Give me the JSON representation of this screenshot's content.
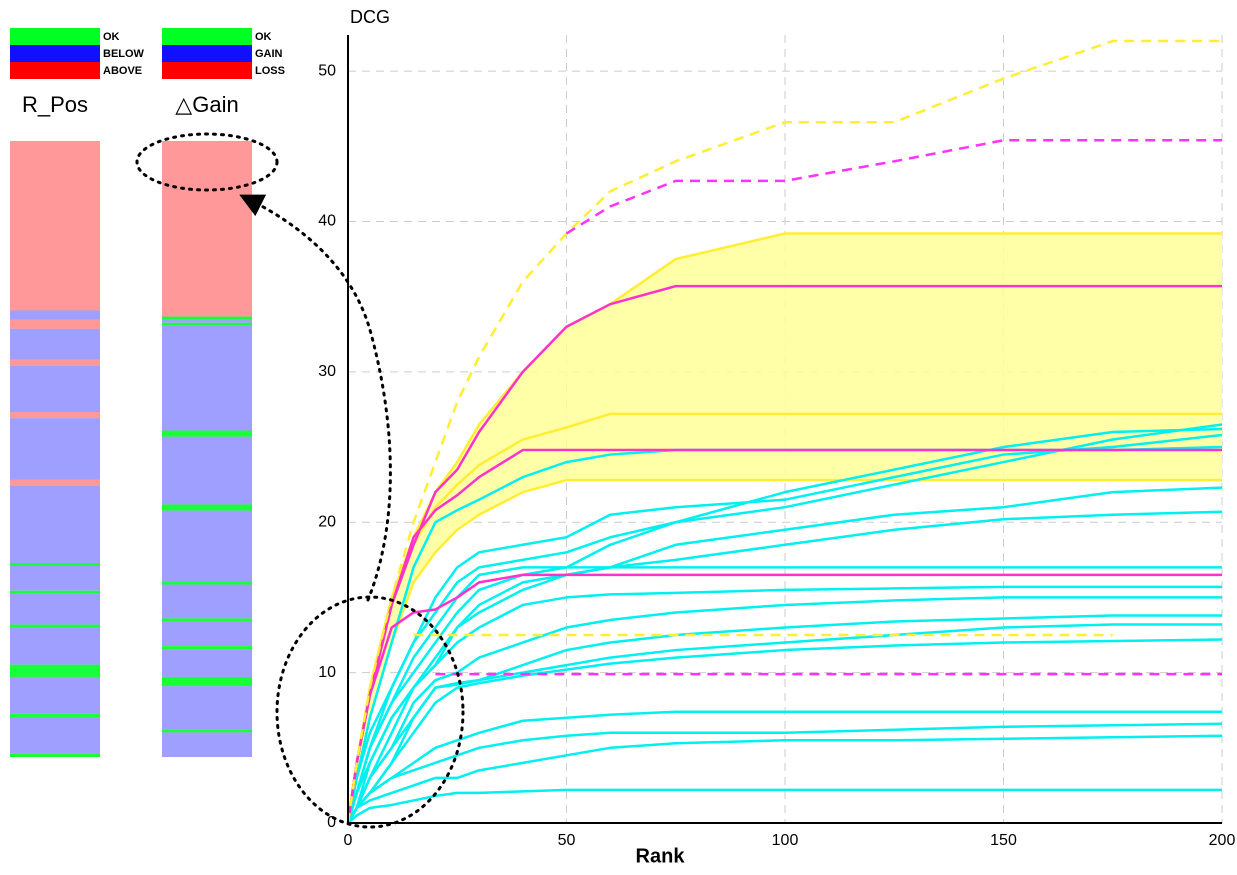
{
  "panels": [
    {
      "title": "R_Pos",
      "legend": [
        {
          "label": "OK",
          "color": "#00ff22"
        },
        {
          "label": "BELOW",
          "color": "#1010ff"
        },
        {
          "label": "ABOVE",
          "color": "#ff0000"
        }
      ],
      "segments": [
        {
          "status": "ABOVE",
          "rows": 55
        },
        {
          "status": "BELOW",
          "rows": 3
        },
        {
          "status": "ABOVE",
          "rows": 3
        },
        {
          "status": "BELOW",
          "rows": 10
        },
        {
          "status": "ABOVE",
          "rows": 2
        },
        {
          "status": "BELOW",
          "rows": 15
        },
        {
          "status": "ABOVE",
          "rows": 2
        },
        {
          "status": "BELOW",
          "rows": 20
        },
        {
          "status": "ABOVE",
          "rows": 2
        },
        {
          "status": "BELOW",
          "rows": 25
        },
        {
          "status": "OK",
          "rows": 1
        },
        {
          "status": "BELOW",
          "rows": 8
        },
        {
          "status": "OK",
          "rows": 1
        },
        {
          "status": "BELOW",
          "rows": 10
        },
        {
          "status": "OK",
          "rows": 1
        },
        {
          "status": "BELOW",
          "rows": 12
        },
        {
          "status": "OK",
          "rows": 4
        },
        {
          "status": "BELOW",
          "rows": 12
        },
        {
          "status": "OK",
          "rows": 1
        },
        {
          "status": "BELOW",
          "rows": 12
        },
        {
          "status": "OK",
          "rows": 1
        }
      ]
    },
    {
      "title": "△Gain",
      "legend": [
        {
          "label": "OK",
          "color": "#00ff22"
        },
        {
          "label": "GAIN",
          "color": "#1010ff"
        },
        {
          "label": "LOSS",
          "color": "#ff0000"
        }
      ],
      "segments": [
        {
          "status": "LOSS",
          "rows": 57
        },
        {
          "status": "OK",
          "rows": 1
        },
        {
          "status": "GAIN",
          "rows": 1
        },
        {
          "status": "OK",
          "rows": 1
        },
        {
          "status": "GAIN",
          "rows": 34
        },
        {
          "status": "OK",
          "rows": 2
        },
        {
          "status": "GAIN",
          "rows": 22
        },
        {
          "status": "OK",
          "rows": 2
        },
        {
          "status": "GAIN",
          "rows": 23
        },
        {
          "status": "OK",
          "rows": 1
        },
        {
          "status": "GAIN",
          "rows": 11
        },
        {
          "status": "OK",
          "rows": 1
        },
        {
          "status": "GAIN",
          "rows": 8
        },
        {
          "status": "OK",
          "rows": 1
        },
        {
          "status": "GAIN",
          "rows": 9
        },
        {
          "status": "OK",
          "rows": 3
        },
        {
          "status": "GAIN",
          "rows": 14
        },
        {
          "status": "OK",
          "rows": 1
        },
        {
          "status": "GAIN",
          "rows": 8
        }
      ]
    }
  ],
  "chart_data": {
    "type": "line",
    "y_label": "DCG",
    "x_label": "Rank",
    "x": [
      0,
      2,
      5,
      10,
      15,
      20,
      25,
      30,
      40,
      50,
      60,
      75,
      100,
      125,
      150,
      175,
      200
    ],
    "xlim": [
      0,
      200
    ],
    "ylim": [
      0,
      52.4
    ],
    "xticks": [
      0,
      50,
      100,
      150,
      200
    ],
    "yticks": [
      0,
      10,
      20,
      30,
      40,
      50
    ],
    "grid": true,
    "series": [
      {
        "color": "#ffee33",
        "fill_to": 2,
        "fill_color": "#ffff99",
        "values": [
          0,
          4,
          9,
          15,
          19,
          22,
          24,
          26.5,
          30,
          33,
          34.5,
          37.5,
          39.2,
          39.2,
          39.2,
          39.2,
          39.2
        ]
      },
      {
        "color": "#ffee33",
        "values": [
          0,
          4,
          8.5,
          14.5,
          18.5,
          21,
          22.5,
          23.8,
          25.5,
          26.3,
          27.2,
          27.2,
          27.2,
          27.2,
          27.2,
          27.2,
          27.2
        ]
      },
      {
        "color": "#ffee33",
        "values": [
          0,
          3,
          7,
          12,
          16,
          18,
          19.5,
          20.5,
          22,
          22.8,
          22.8,
          22.8,
          22.8,
          22.8,
          22.8,
          22.8,
          22.8
        ]
      },
      {
        "color": "#00f0f0",
        "values": [
          0,
          3,
          6,
          9,
          12,
          14,
          16,
          17,
          17.5,
          18,
          19,
          20,
          21,
          22.5,
          24,
          25.5,
          26.5
        ]
      },
      {
        "color": "#00f0f0",
        "values": [
          0,
          2,
          5,
          8,
          10,
          12,
          14,
          15.5,
          16.5,
          17,
          18.5,
          20,
          22,
          23.5,
          25,
          26,
          26.2
        ]
      },
      {
        "color": "#00f0f0",
        "values": [
          0,
          2,
          5,
          9,
          12,
          15,
          17,
          18,
          18.5,
          19,
          20.5,
          21,
          21.5,
          23,
          24.5,
          25,
          25.8
        ]
      },
      {
        "color": "#00f0f0",
        "values": [
          0,
          3,
          7,
          12,
          17,
          20,
          20.8,
          21.5,
          23,
          24,
          24.5,
          24.8,
          24.8,
          24.8,
          24.8,
          24.8,
          25
        ]
      },
      {
        "color": "#00f0f0",
        "values": [
          0,
          1,
          4,
          7,
          9,
          11,
          13,
          14,
          15.5,
          16.5,
          17,
          18.5,
          19.5,
          20.5,
          21,
          22,
          22.3
        ]
      },
      {
        "color": "#00f0f0",
        "values": [
          0,
          2,
          4,
          7,
          9,
          10.5,
          13,
          14.5,
          16,
          16.5,
          17,
          17.5,
          18.5,
          19.5,
          20.2,
          20.5,
          20.7
        ]
      },
      {
        "color": "#00f0f0",
        "values": [
          0,
          2,
          5,
          8,
          11,
          13,
          15,
          16.5,
          17,
          17,
          17,
          17,
          17,
          17,
          17,
          17,
          17
        ]
      },
      {
        "color": "#00f0f0",
        "values": [
          0,
          1,
          3,
          6,
          9,
          10.5,
          12,
          13,
          14.5,
          15,
          15.2,
          15.3,
          15.5,
          15.6,
          15.7,
          15.7,
          15.7
        ]
      },
      {
        "color": "#00f0f0",
        "values": [
          0,
          1,
          3,
          5,
          8,
          9.5,
          10,
          11,
          12,
          13,
          13.5,
          14,
          14.5,
          14.8,
          15,
          15,
          15
        ]
      },
      {
        "color": "#00f0f0",
        "values": [
          0,
          1,
          3,
          5,
          7,
          9,
          9.3,
          9.5,
          10.5,
          11.5,
          12,
          12.5,
          13,
          13.4,
          13.6,
          13.8,
          13.8
        ]
      },
      {
        "color": "#00f0f0",
        "values": [
          0,
          1,
          2,
          4,
          7,
          9,
          9.2,
          9.5,
          10,
          10.5,
          11,
          11.5,
          12,
          12.5,
          13,
          13.2,
          13.2
        ]
      },
      {
        "color": "#00f0f0",
        "values": [
          0,
          1,
          2,
          4,
          6,
          8,
          9,
          9.3,
          9.8,
          10.2,
          10.6,
          11,
          11.5,
          11.8,
          12,
          12.1,
          12.2
        ]
      },
      {
        "color": "#00f0f0",
        "values": [
          0,
          1,
          2,
          3,
          4,
          5,
          5.5,
          6,
          6.8,
          7,
          7.2,
          7.4,
          7.4,
          7.4,
          7.4,
          7.4,
          7.4
        ]
      },
      {
        "color": "#00f0f0",
        "values": [
          0,
          1,
          2,
          3,
          3.5,
          4,
          4.5,
          5,
          5.5,
          5.8,
          6,
          6,
          6,
          6.2,
          6.4,
          6.5,
          6.6
        ]
      },
      {
        "color": "#00f0f0",
        "values": [
          0,
          1,
          1.5,
          2,
          2.5,
          3,
          3,
          3.5,
          4,
          4.5,
          5,
          5.3,
          5.5,
          5.5,
          5.6,
          5.7,
          5.8
        ]
      },
      {
        "color": "#00f0f0",
        "values": [
          0,
          0.5,
          1,
          1.2,
          1.5,
          1.8,
          2,
          2,
          2.1,
          2.2,
          2.2,
          2.2,
          2.2,
          2.2,
          2.2,
          2.2,
          2.2
        ]
      },
      {
        "color": "#ff33cc",
        "values": [
          0,
          4,
          8.5,
          14.5,
          18.5,
          22,
          23.5,
          26,
          30,
          33,
          34.5,
          35.7,
          35.7,
          35.7,
          35.7,
          35.7,
          35.7
        ]
      },
      {
        "color": "#ff33cc",
        "values": [
          0,
          4,
          8.5,
          14.5,
          19,
          20.8,
          21.8,
          23,
          24.8,
          24.8,
          24.8,
          24.8,
          24.8,
          24.8,
          24.8,
          24.8,
          24.8
        ]
      },
      {
        "color": "#ff33cc",
        "values": [
          0,
          4,
          8.5,
          13,
          14,
          14.2,
          15,
          16,
          16.5,
          16.5,
          16.5,
          16.5,
          16.5,
          16.5,
          16.5,
          16.5,
          16.5
        ]
      },
      {
        "color": "#ffee33",
        "dashed": true,
        "values": [
          0,
          4,
          9,
          15,
          20,
          24,
          28,
          31,
          36,
          39.2,
          42,
          44,
          46.6,
          46.6,
          49.5,
          52,
          52
        ]
      },
      {
        "color": "#ff33ff",
        "dashed": true,
        "values": [
          null,
          null,
          null,
          null,
          null,
          null,
          null,
          null,
          null,
          39.2,
          41,
          42.7,
          42.7,
          44,
          45.4,
          45.4,
          45.4
        ]
      },
      {
        "color": "#ffee33",
        "dashed": true,
        "values": [
          null,
          null,
          null,
          null,
          12.5,
          12.5,
          12.5,
          12.5,
          12.5,
          12.5,
          12.5,
          12.5,
          12.5,
          12.5,
          12.5,
          12.5,
          null
        ]
      },
      {
        "color": "#ff33ff",
        "dashed": true,
        "values": [
          null,
          null,
          null,
          null,
          null,
          9.9,
          9.9,
          9.9,
          9.9,
          9.9,
          9.9,
          9.9,
          9.9,
          9.9,
          9.9,
          9.9,
          9.9
        ]
      }
    ]
  }
}
